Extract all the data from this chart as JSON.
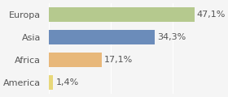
{
  "categories": [
    "America",
    "Africa",
    "Asia",
    "Europa"
  ],
  "values": [
    1.4,
    17.1,
    34.3,
    47.1
  ],
  "labels": [
    "1,4%",
    "17,1%",
    "34,3%",
    "47,1%"
  ],
  "bar_colors": [
    "#e8d87a",
    "#e8b87a",
    "#6b8cba",
    "#b5c98e"
  ],
  "background_color": "#f5f5f5",
  "xlim": [
    0,
    55
  ],
  "bar_height": 0.62,
  "label_fontsize": 8,
  "category_fontsize": 8
}
